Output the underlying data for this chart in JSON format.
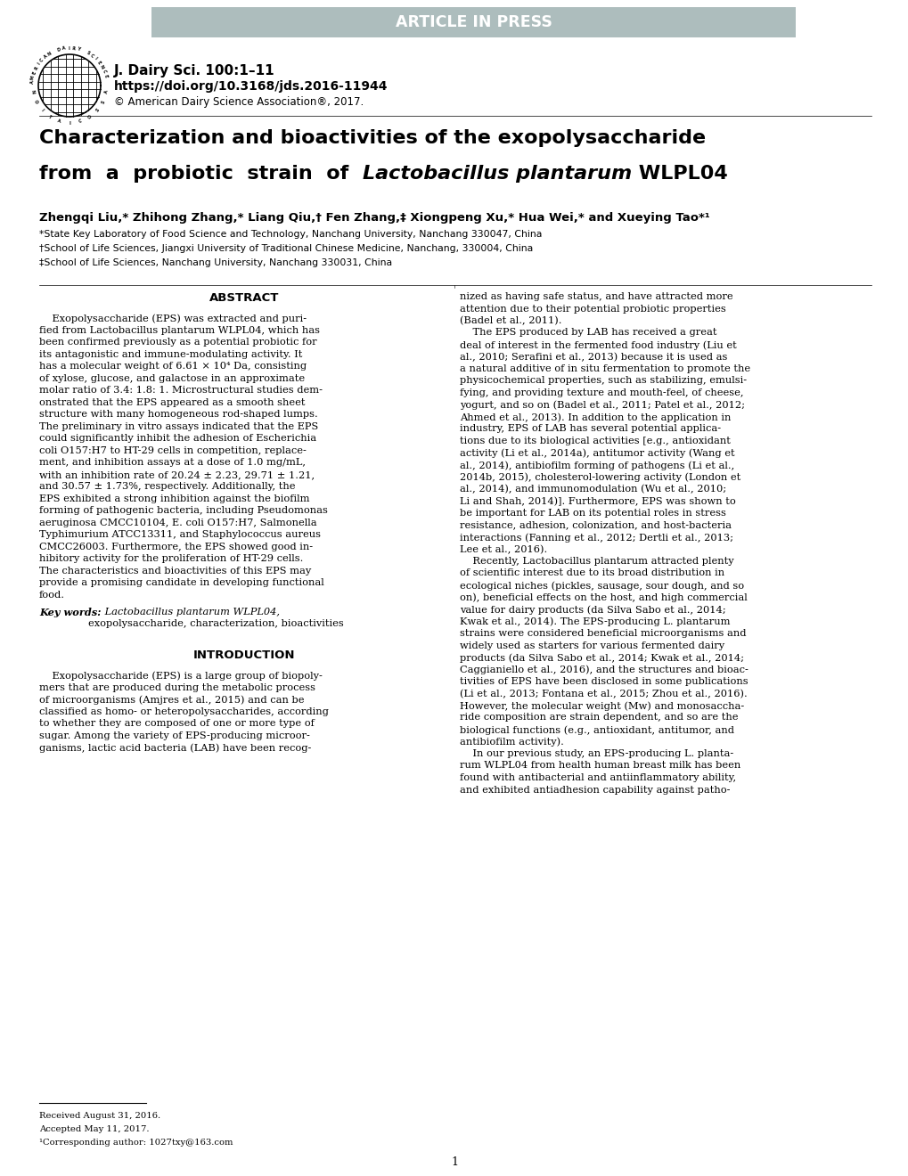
{
  "background_color": "#ffffff",
  "header_bar_color": "#adbdbd",
  "header_text": "ARTICLE IN PRESS",
  "header_text_color": "#ffffff",
  "journal_line1": "J. Dairy Sci. 100:1–11",
  "journal_line2": "https://doi.org/10.3168/jds.2016-11944",
  "journal_line3": "© American Dairy Science Association®, 2017.",
  "title1": "Characterization and bioactivities of the exopolysaccharide",
  "title2a": "from  a  probiotic  strain  of  ",
  "title2b": "Lactobacillus plantarum",
  "title2c": " WLPL04",
  "authors": "Zhengqi Liu,* Zhihong Zhang,* Liang Qiu,† Fen Zhang,‡ Xiongpeng Xu,* Hua Wei,* and Xueying Tao*¹",
  "affil1": "*State Key Laboratory of Food Science and Technology, Nanchang University, Nanchang 330047, China",
  "affil2": "†School of Life Sciences, Jiangxi University of Traditional Chinese Medicine, Nanchang, 330004, China",
  "affil3": "‡School of Life Sciences, Nanchang University, Nanchang 330031, China",
  "abstract_lines": [
    "    Exopolysaccharide (EPS) was extracted and puri-",
    "fied from Lactobacillus plantarum WLPL04, which has",
    "been confirmed previously as a potential probiotic for",
    "its antagonistic and immune-modulating activity. It",
    "has a molecular weight of 6.61 × 10⁴ Da, consisting",
    "of xylose, glucose, and galactose in an approximate",
    "molar ratio of 3.4: 1.8: 1. Microstructural studies dem-",
    "onstrated that the EPS appeared as a smooth sheet",
    "structure with many homogeneous rod-shaped lumps.",
    "The preliminary in vitro assays indicated that the EPS",
    "could significantly inhibit the adhesion of Escherichia",
    "coli O157:H7 to HT-29 cells in competition, replace-",
    "ment, and inhibition assays at a dose of 1.0 mg/mL,",
    "with an inhibition rate of 20.24 ± 2.23, 29.71 ± 1.21,",
    "and 30.57 ± 1.73%, respectively. Additionally, the",
    "EPS exhibited a strong inhibition against the biofilm",
    "forming of pathogenic bacteria, including Pseudomonas",
    "aeruginosa CMCC10104, E. coli O157:H7, Salmonella",
    "Typhimurium ATCC13311, and Staphylococcus aureus",
    "CMCC26003. Furthermore, the EPS showed good in-",
    "hibitory activity for the proliferation of HT-29 cells.",
    "The characteristics and bioactivities of this EPS may",
    "provide a promising candidate in developing functional",
    "food."
  ],
  "kw1": "Key words:",
  "kw2": "Lactobacillus plantarum WLPL04,",
  "kw3": "exopolysaccharide, characterization, bioactivities",
  "intro_title": "INTRODUCTION",
  "intro_left_lines": [
    "    Exopolysaccharide (EPS) is a large group of biopoly-",
    "mers that are produced during the metabolic process",
    "of microorganisms (Amjres et al., 2015) and can be",
    "classified as homo- or heteropolysaccharides, according",
    "to whether they are composed of one or more type of",
    "sugar. Among the variety of EPS-producing microor-",
    "ganisms, lactic acid bacteria (LAB) have been recog-"
  ],
  "right_col_lines": [
    "nized as having safe status, and have attracted more",
    "attention due to their potential probiotic properties",
    "(Badel et al., 2011).",
    "    The EPS produced by LAB has received a great",
    "deal of interest in the fermented food industry (Liu et",
    "al., 2010; Serafini et al., 2013) because it is used as",
    "a natural additive of in situ fermentation to promote the",
    "physicochemical properties, such as stabilizing, emulsi-",
    "fying, and providing texture and mouth-feel, of cheese,",
    "yogurt, and so on (Badel et al., 2011; Patel et al., 2012;",
    "Ahmed et al., 2013). In addition to the application in",
    "industry, EPS of LAB has several potential applica-",
    "tions due to its biological activities [e.g., antioxidant",
    "activity (Li et al., 2014a), antitumor activity (Wang et",
    "al., 2014), antibiofilm forming of pathogens (Li et al.,",
    "2014b, 2015), cholesterol-lowering activity (London et",
    "al., 2014), and immunomodulation (Wu et al., 2010;",
    "Li and Shah, 2014)]. Furthermore, EPS was shown to",
    "be important for LAB on its potential roles in stress",
    "resistance, adhesion, colonization, and host-bacteria",
    "interactions (Fanning et al., 2012; Dertli et al., 2013;",
    "Lee et al., 2016).",
    "    Recently, Lactobacillus plantarum attracted plenty",
    "of scientific interest due to its broad distribution in",
    "ecological niches (pickles, sausage, sour dough, and so",
    "on), beneficial effects on the host, and high commercial",
    "value for dairy products (da Silva Sabo et al., 2014;",
    "Kwak et al., 2014). The EPS-producing L. plantarum",
    "strains were considered beneficial microorganisms and",
    "widely used as starters for various fermented dairy",
    "products (da Silva Sabo et al., 2014; Kwak et al., 2014;",
    "Caggianiello et al., 2016), and the structures and bioac-",
    "tivities of EPS have been disclosed in some publications",
    "(Li et al., 2013; Fontana et al., 2015; Zhou et al., 2016).",
    "However, the molecular weight (Mw) and monosaccha-",
    "ride composition are strain dependent, and so are the",
    "biological functions (e.g., antioxidant, antitumor, and",
    "antibiofilm activity).",
    "    In our previous study, an EPS-producing L. planta-",
    "rum WLPL04 from health human breast milk has been",
    "found with antibacterial and antiinflammatory ability,",
    "and exhibited antiadhesion capability against patho-"
  ],
  "footnote1": "Received August 31, 2016.",
  "footnote2": "Accepted May 11, 2017.",
  "footnote3": "¹Corresponding author: 1027txy@163.com",
  "page_number": "1"
}
